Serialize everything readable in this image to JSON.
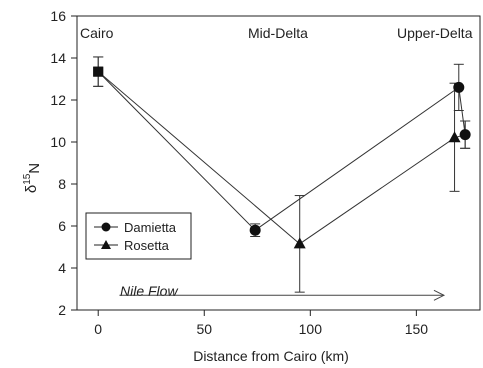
{
  "chart_data": {
    "type": "line",
    "xlabel": "Distance from Cairo (km)",
    "ylabel": "δ¹⁵N",
    "ylabel_main": "δ",
    "ylabel_sup": "15",
    "ylabel_sub": "N",
    "xlim": [
      -10,
      180
    ],
    "ylim": [
      2,
      16
    ],
    "xticks": [
      0,
      50,
      100,
      150
    ],
    "yticks": [
      2,
      4,
      6,
      8,
      10,
      12,
      14,
      16
    ],
    "series": [
      {
        "name": "Damietta",
        "marker": "circle",
        "points": [
          {
            "x": 0,
            "y": 13.35,
            "err_lo": 12.65,
            "err_hi": 14.05
          },
          {
            "x": 74,
            "y": 5.8,
            "err_lo": 5.5,
            "err_hi": 6.1
          },
          {
            "x": 170,
            "y": 12.6,
            "err_lo": 11.5,
            "err_hi": 13.7
          },
          {
            "x": 173,
            "y": 10.35,
            "err_lo": 9.7,
            "err_hi": 11.0
          }
        ]
      },
      {
        "name": "Rosetta",
        "marker": "triangle",
        "points": [
          {
            "x": 0,
            "y": 13.35,
            "err_lo": 12.65,
            "err_hi": 14.05
          },
          {
            "x": 95,
            "y": 5.15,
            "err_lo": 2.85,
            "err_hi": 7.45
          },
          {
            "x": 168,
            "y": 10.2,
            "err_lo": 7.65,
            "err_hi": 12.8
          },
          {
            "x": 173,
            "y": 10.35,
            "err_lo": 9.7,
            "err_hi": 11.0
          }
        ]
      }
    ],
    "shared_start_marker": "square",
    "region_labels": [
      "Cairo",
      "Mid-Delta",
      "Upper-Delta"
    ],
    "annotation": {
      "text": "Nile Flow",
      "arrow_from_x": 10,
      "arrow_to_x": 163,
      "arrow_y": 2.7
    },
    "legend": {
      "placement": "lower-left",
      "entries": [
        "Damietta",
        "Rosetta"
      ]
    },
    "grid": false
  }
}
